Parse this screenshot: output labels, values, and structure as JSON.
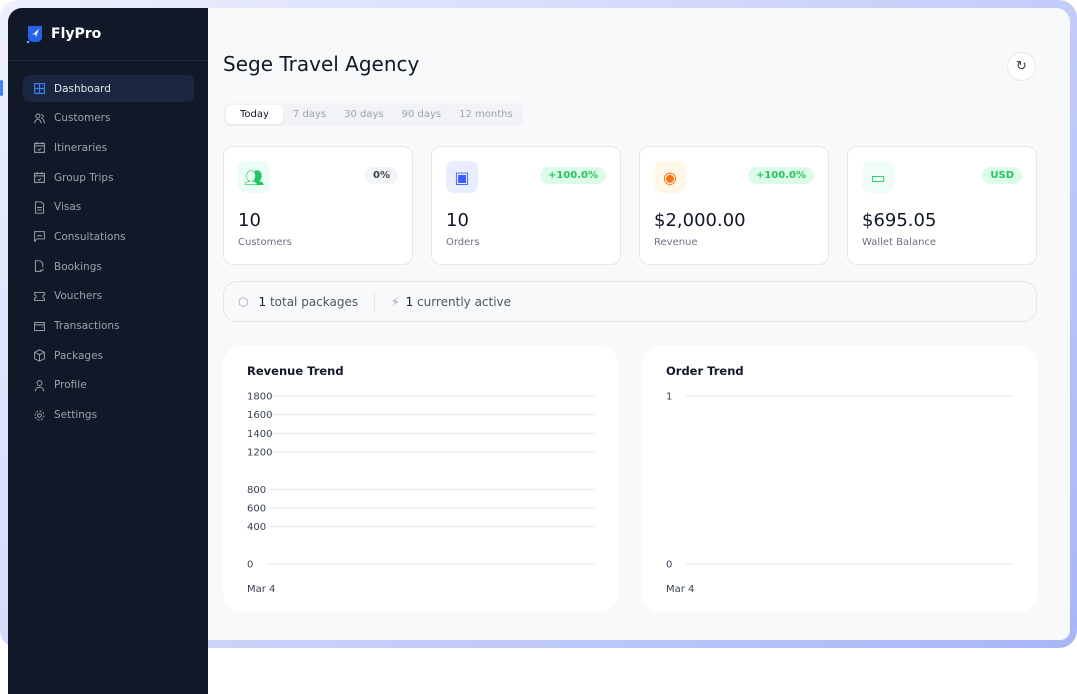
{
  "brand": {
    "name": "FlyPro",
    "accent": "#3b82f6"
  },
  "sidebar": {
    "items": [
      {
        "label": "Dashboard",
        "icon": "grid-icon",
        "active": true
      },
      {
        "label": "Customers",
        "icon": "users-icon"
      },
      {
        "label": "Itineraries",
        "icon": "calendar-check-icon"
      },
      {
        "label": "Group Trips",
        "icon": "calendar-check-icon"
      },
      {
        "label": "Visas",
        "icon": "document-icon"
      },
      {
        "label": "Consultations",
        "icon": "message-icon"
      },
      {
        "label": "Bookings",
        "icon": "file-check-icon"
      },
      {
        "label": "Vouchers",
        "icon": "ticket-icon"
      },
      {
        "label": "Transactions",
        "icon": "wallet-icon"
      },
      {
        "label": "Packages",
        "icon": "box-icon"
      },
      {
        "label": "Profile",
        "icon": "user-icon"
      },
      {
        "label": "Settings",
        "icon": "gear-icon"
      }
    ]
  },
  "header": {
    "title": "Sege Travel Agency",
    "refresh_icon": "refresh-icon"
  },
  "tabs": [
    "Today",
    "7 days",
    "30 days",
    "90 days",
    "12 months"
  ],
  "cards": [
    {
      "value": "10",
      "label": "Customers",
      "badge": "0%",
      "icon": "users-icon",
      "color": "#22c55e"
    },
    {
      "value": "10",
      "label": "Orders",
      "badge": "+100.0%",
      "icon": "shopping-bag-icon",
      "color": "#3b5bfd"
    },
    {
      "value": "$2,000.00",
      "label": "Revenue",
      "badge": "+100.0%",
      "icon": "banknote-icon",
      "color": "#f97316"
    },
    {
      "value": "$695.05",
      "label": "Wallet Balance",
      "badge": "USD",
      "icon": "wallet-icon",
      "color": "#22c55e"
    }
  ],
  "packages": {
    "total_count": "1",
    "total_text": "total packages",
    "active_count": "1",
    "active_text": "currently active"
  },
  "chart_data": [
    {
      "type": "line",
      "title": "Revenue Trend",
      "categories": [
        "Mar 4"
      ],
      "ytick_labels": [
        "0",
        "400",
        "600",
        "800",
        "1200",
        "1400",
        "1600",
        "1800"
      ],
      "ylim": [
        0,
        1800
      ],
      "grid": true
    },
    {
      "type": "line",
      "title": "Order Trend",
      "categories": [
        "Mar 4"
      ],
      "ytick_labels": [
        "0",
        "1"
      ],
      "ylim": [
        0,
        1
      ],
      "grid": true
    }
  ]
}
